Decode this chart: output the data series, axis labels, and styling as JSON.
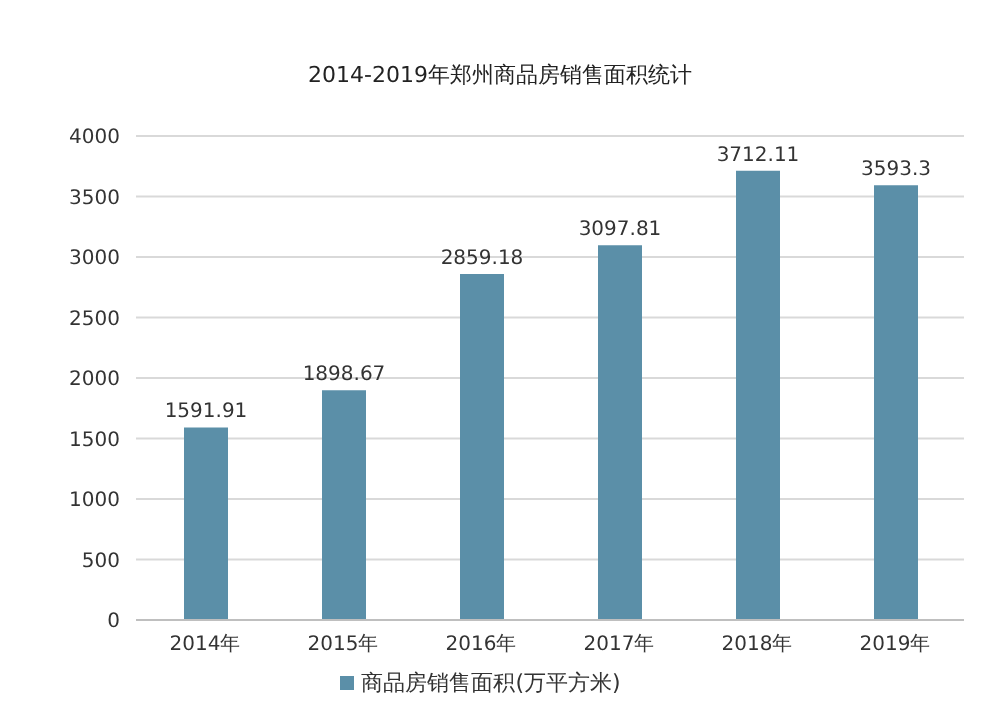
{
  "chart_data": {
    "type": "bar",
    "title": "2014-2019年郑州商品房销售面积统计",
    "categories": [
      "2014年",
      "2015年",
      "2016年",
      "2017年",
      "2018年",
      "2019年"
    ],
    "series": [
      {
        "name": "商品房销售面积(万平方米)",
        "color": "#5b8fa8",
        "values": [
          1591.91,
          1898.67,
          2859.18,
          3097.81,
          3712.11,
          3593.3
        ]
      }
    ],
    "ylim": [
      0,
      4000
    ],
    "yticks": [
      0,
      500,
      1000,
      1500,
      2000,
      2500,
      3000,
      3500,
      4000
    ],
    "grid": "y",
    "legend": "bottom",
    "data_labels": true
  }
}
